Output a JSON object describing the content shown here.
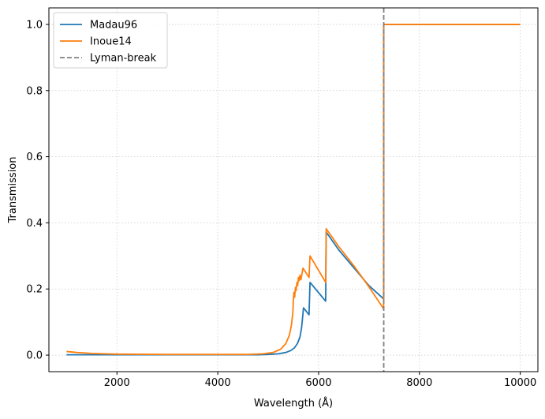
{
  "chart_data": {
    "type": "line",
    "title": "",
    "xlabel": "Wavelength (Å)",
    "ylabel": "Transmission",
    "xlim": [
      650,
      10350
    ],
    "ylim": [
      -0.05,
      1.05
    ],
    "xticks": [
      2000,
      4000,
      6000,
      8000,
      10000
    ],
    "yticks": [
      0.0,
      0.2,
      0.4,
      0.6,
      0.8,
      1.0
    ],
    "xtick_labels": [
      "2000",
      "4000",
      "6000",
      "8000",
      "10000"
    ],
    "ytick_labels": [
      "0.0",
      "0.2",
      "0.4",
      "0.6",
      "0.8",
      "1.0"
    ],
    "grid": true,
    "legend_position": "top-left",
    "series": [
      {
        "name": "Madau96",
        "color": "#1f77b4",
        "style": "solid",
        "points": [
          [
            1000,
            0.001
          ],
          [
            2000,
            0.001
          ],
          [
            3000,
            0.001
          ],
          [
            4000,
            0.001
          ],
          [
            4800,
            0.001
          ],
          [
            5000,
            0.002
          ],
          [
            5200,
            0.004
          ],
          [
            5350,
            0.008
          ],
          [
            5450,
            0.014
          ],
          [
            5520,
            0.022
          ],
          [
            5580,
            0.035
          ],
          [
            5630,
            0.055
          ],
          [
            5660,
            0.08
          ],
          [
            5680,
            0.11
          ],
          [
            5700,
            0.143
          ],
          [
            5810,
            0.122
          ],
          [
            5830,
            0.22
          ],
          [
            6140,
            0.163
          ],
          [
            6150,
            0.372
          ],
          [
            6400,
            0.318
          ],
          [
            6700,
            0.264
          ],
          [
            7000,
            0.21
          ],
          [
            7290,
            0.17
          ],
          [
            7292,
            1.0
          ],
          [
            10000,
            1.0
          ]
        ]
      },
      {
        "name": "Inoue14",
        "color": "#ff7f0e",
        "style": "solid",
        "points": [
          [
            1000,
            0.011
          ],
          [
            1200,
            0.008
          ],
          [
            1500,
            0.005
          ],
          [
            2000,
            0.003
          ],
          [
            3000,
            0.002
          ],
          [
            4000,
            0.002
          ],
          [
            4600,
            0.002
          ],
          [
            4900,
            0.004
          ],
          [
            5100,
            0.008
          ],
          [
            5250,
            0.018
          ],
          [
            5350,
            0.035
          ],
          [
            5420,
            0.06
          ],
          [
            5460,
            0.09
          ],
          [
            5490,
            0.13
          ],
          [
            5500,
            0.17
          ],
          [
            5510,
            0.19
          ],
          [
            5525,
            0.175
          ],
          [
            5540,
            0.205
          ],
          [
            5555,
            0.195
          ],
          [
            5570,
            0.22
          ],
          [
            5585,
            0.21
          ],
          [
            5600,
            0.235
          ],
          [
            5615,
            0.225
          ],
          [
            5630,
            0.242
          ],
          [
            5650,
            0.228
          ],
          [
            5690,
            0.263
          ],
          [
            5810,
            0.235
          ],
          [
            5830,
            0.3
          ],
          [
            6140,
            0.22
          ],
          [
            6150,
            0.382
          ],
          [
            6400,
            0.328
          ],
          [
            6700,
            0.27
          ],
          [
            7000,
            0.206
          ],
          [
            7290,
            0.14
          ],
          [
            7292,
            1.0
          ],
          [
            10000,
            1.0
          ]
        ]
      },
      {
        "name": "Lyman-break",
        "color": "#808080",
        "style": "dashed",
        "vline_x": 7292
      }
    ]
  }
}
